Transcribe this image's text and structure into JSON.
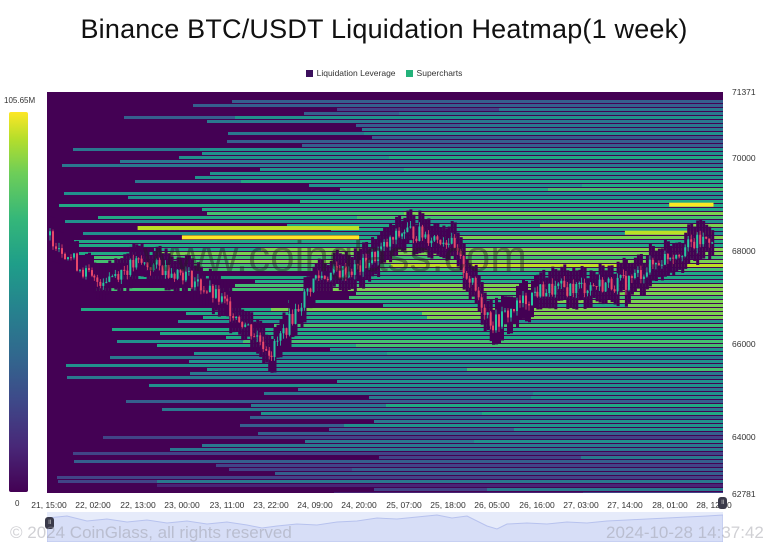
{
  "title": "Binance BTC/USDT Liquidation Heatmap(1 week)",
  "legend": [
    {
      "label": "Liquidation Leverage",
      "color": "#3b0f5c"
    },
    {
      "label": "Supercharts",
      "color": "#23b27a"
    }
  ],
  "colorbar": {
    "max_label": "105.65M",
    "min_label": "0",
    "colormap": "viridis"
  },
  "watermark": "www.coinglass.com",
  "footer": {
    "copyright": "© 2024 CoinGlass, all rights reserved",
    "timestamp": "2024-10-28 14:37:42"
  },
  "navigator": {
    "left_handle_icon": "drag-handle-icon",
    "right_handle_icon": "drag-handle-icon",
    "fill": "#e6ebfa"
  },
  "colors": {
    "background": "#440154",
    "up_candle": "#26c6a0",
    "down_candle": "#e8476a",
    "hot_band": "#fde725"
  },
  "chart_data": {
    "type": "heatmap",
    "title": "Binance BTC/USDT Liquidation Heatmap(1 week)",
    "xlabel": "",
    "ylabel": "",
    "x_ticks": [
      "21, 15:00",
      "22, 02:00",
      "22, 13:00",
      "23, 00:00",
      "23, 11:00",
      "23, 22:00",
      "24, 09:00",
      "24, 20:00",
      "25, 07:00",
      "25, 18:00",
      "26, 05:00",
      "26, 16:00",
      "27, 03:00",
      "27, 14:00",
      "28, 01:00",
      "28, 12:00"
    ],
    "y_ticks": [
      71371,
      70000,
      68000,
      66000,
      64000,
      62781
    ],
    "ylim": [
      62781,
      71371
    ],
    "colorbar_range": [
      0,
      105650000
    ],
    "colorbar_labels": [
      "0",
      "105.65M"
    ],
    "legend": [
      "Liquidation Leverage",
      "Supercharts"
    ],
    "grid": false,
    "hot_bands": [
      {
        "price": 68300,
        "from": "23, 00:00",
        "to": "24, 20:00",
        "intensity": "max"
      },
      {
        "price": 68500,
        "from": "22, 13:00",
        "to": "24, 20:00",
        "intensity": "high"
      },
      {
        "price": 69000,
        "from": "28, 01:00",
        "to": "28, 12:00",
        "intensity": "max"
      },
      {
        "price": 68400,
        "from": "27, 14:00",
        "to": "28, 12:00",
        "intensity": "high"
      }
    ],
    "price_series": {
      "x": [
        "21, 15:00",
        "22, 02:00",
        "22, 13:00",
        "23, 00:00",
        "23, 11:00",
        "23, 22:00",
        "24, 09:00",
        "24, 20:00",
        "25, 07:00",
        "25, 18:00",
        "26, 05:00",
        "26, 16:00",
        "27, 03:00",
        "27, 14:00",
        "28, 01:00",
        "28, 12:00"
      ],
      "close": [
        68300,
        67300,
        67700,
        67500,
        66800,
        65800,
        67400,
        67600,
        68400,
        68200,
        66400,
        67100,
        67200,
        67300,
        67900,
        68300
      ],
      "low_min": 65300,
      "high_max": 68900
    }
  }
}
